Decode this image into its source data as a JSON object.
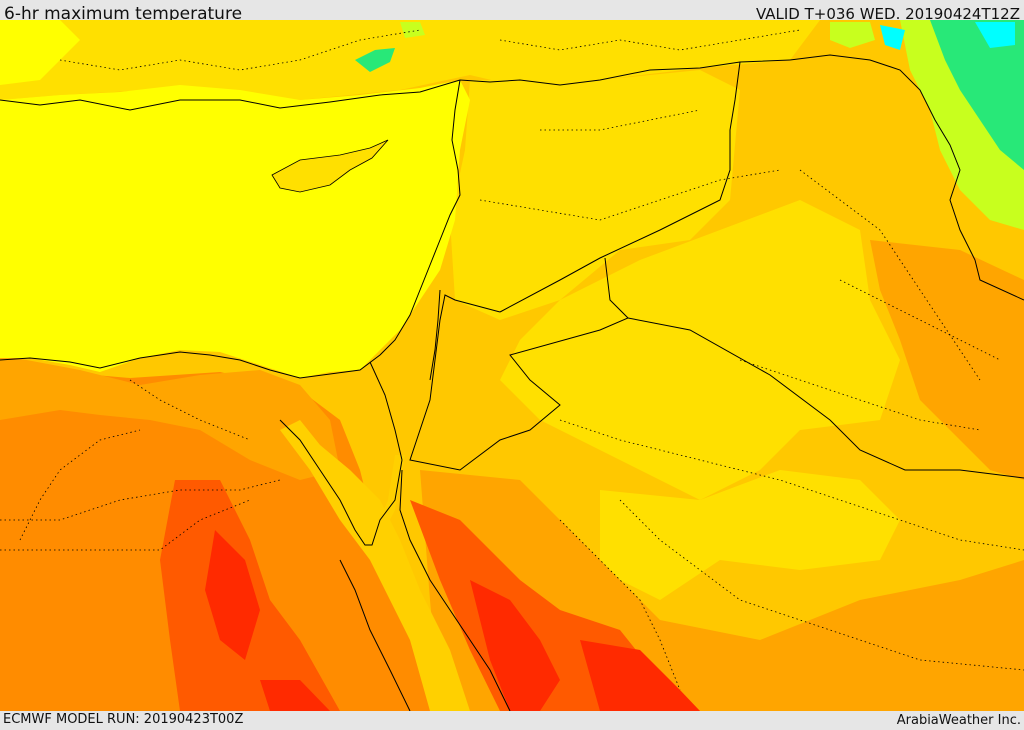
{
  "header": {
    "title": "6-hr maximum temperature",
    "valid": "VALID T+036 WED. 20190424T12Z"
  },
  "footer": {
    "model_run": "ECMWF MODEL RUN: 20190423T00Z",
    "credit": "ArabiaWeather Inc."
  },
  "palette": {
    "sea_yellow": "#ffff00",
    "warm_yellow": "#ffe000",
    "gold": "#ffc800",
    "light_orange": "#ffa500",
    "orange": "#ff8c00",
    "red_orange": "#ff5a00",
    "red": "#ff2a00",
    "yellow_green": "#c8ff1e",
    "green": "#28e878",
    "cyan": "#00ffff",
    "border_line": "#000000"
  },
  "icons": {
    "map": "temperature-field-map"
  }
}
